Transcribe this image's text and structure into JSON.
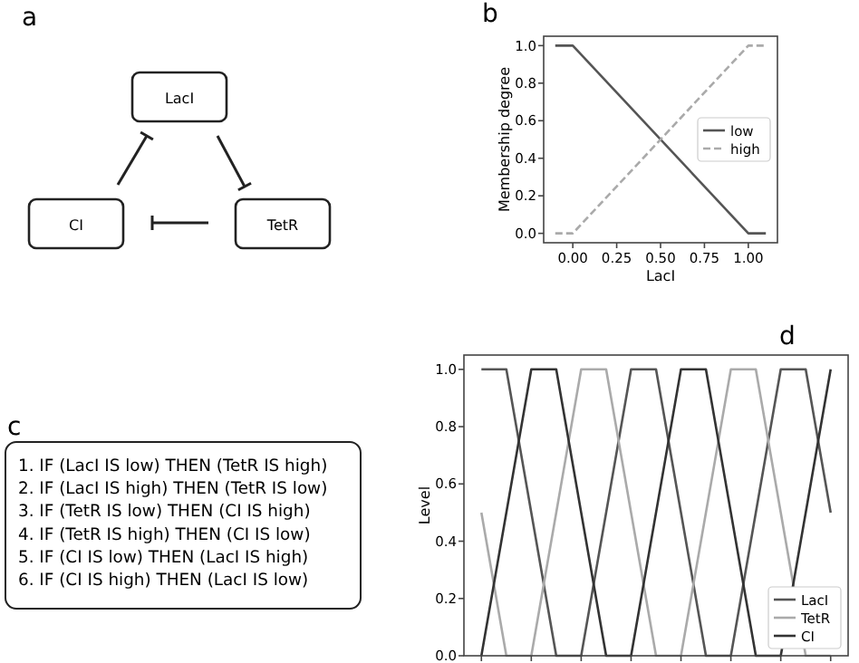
{
  "chart_data": [
    {
      "type": "other",
      "title": "a",
      "annotations": [
        "LacI",
        "CI",
        "TetR"
      ]
    },
    {
      "type": "line",
      "title": "b",
      "xlabel": "LacI",
      "ylabel": "Membership degree",
      "xlim": [
        -0.166,
        1.166
      ],
      "ylim": [
        -0.05,
        1.05
      ],
      "xticks": [
        {
          "value": 0,
          "label": "0.00"
        },
        {
          "value": 0.25,
          "label": "0.25"
        },
        {
          "value": 0.5,
          "label": "0.50"
        },
        {
          "value": 0.75,
          "label": "0.75"
        },
        {
          "value": 1,
          "label": "1.00"
        }
      ],
      "yticks": [
        {
          "value": 0,
          "label": "0.0"
        },
        {
          "value": 0.2,
          "label": "0.2"
        },
        {
          "value": 0.4,
          "label": "0.4"
        },
        {
          "value": 0.6,
          "label": "0.6"
        },
        {
          "value": 0.8,
          "label": "0.8"
        },
        {
          "value": 1,
          "label": "1.0"
        }
      ],
      "legend": "right",
      "series": [
        {
          "name": "low",
          "color": "#555555",
          "line_style": "solid",
          "x": [
            -0.1,
            0,
            1,
            1.1
          ],
          "values": [
            1,
            1,
            0,
            0
          ]
        },
        {
          "name": "high",
          "color": "#aaaaaa",
          "line_style": "dashed",
          "x": [
            -0.1,
            0,
            1,
            1.1
          ],
          "values": [
            0,
            0,
            1,
            1
          ]
        }
      ]
    },
    {
      "type": "other",
      "title": "c",
      "annotations": [
        "1. IF (LacI IS low) THEN (TetR IS high)",
        "2. IF (LacI IS high) THEN (TetR IS low)",
        "3. IF (TetR IS low) THEN (CI IS high)",
        "4. IF (TetR IS high) THEN (CI IS low)",
        "5. IF (CI IS low) THEN (LacI IS high)",
        "6. IF (CI IS high) THEN (LacI IS low)"
      ]
    },
    {
      "type": "line",
      "title": "d",
      "ylabel": "Level",
      "categories": [
        null,
        null,
        null,
        null,
        null,
        null,
        null,
        null,
        null,
        null,
        null,
        null,
        null,
        null,
        null
      ],
      "ylim": [
        0,
        1.05
      ],
      "tick_labels": "y",
      "yticks": [
        {
          "value": 0,
          "label": "0.0"
        },
        {
          "value": 0.2,
          "label": "0.2"
        },
        {
          "value": 0.4,
          "label": "0.4"
        },
        {
          "value": 0.6,
          "label": "0.6"
        },
        {
          "value": 0.8,
          "label": "0.8"
        },
        {
          "value": 1,
          "label": "1.0"
        }
      ],
      "legend": "bottom right",
      "series": [
        {
          "name": "LacI",
          "color": "#555555",
          "values": [
            1,
            1,
            0.5,
            0,
            0,
            0.5,
            1,
            1,
            0.5,
            0,
            0,
            0.5,
            1,
            1,
            0.5
          ]
        },
        {
          "name": "TetR",
          "color": "#aaaaaa",
          "values": [
            0.5,
            0,
            0,
            0.5,
            1,
            1,
            0.5,
            0,
            0,
            0.5,
            1,
            1,
            0.5,
            0,
            0
          ]
        },
        {
          "name": "CI",
          "color": "#333333",
          "values": [
            0,
            0.5,
            1,
            1,
            0.5,
            0,
            0,
            0.5,
            1,
            1,
            0.5,
            0,
            0,
            0.5,
            1
          ]
        }
      ]
    }
  ]
}
